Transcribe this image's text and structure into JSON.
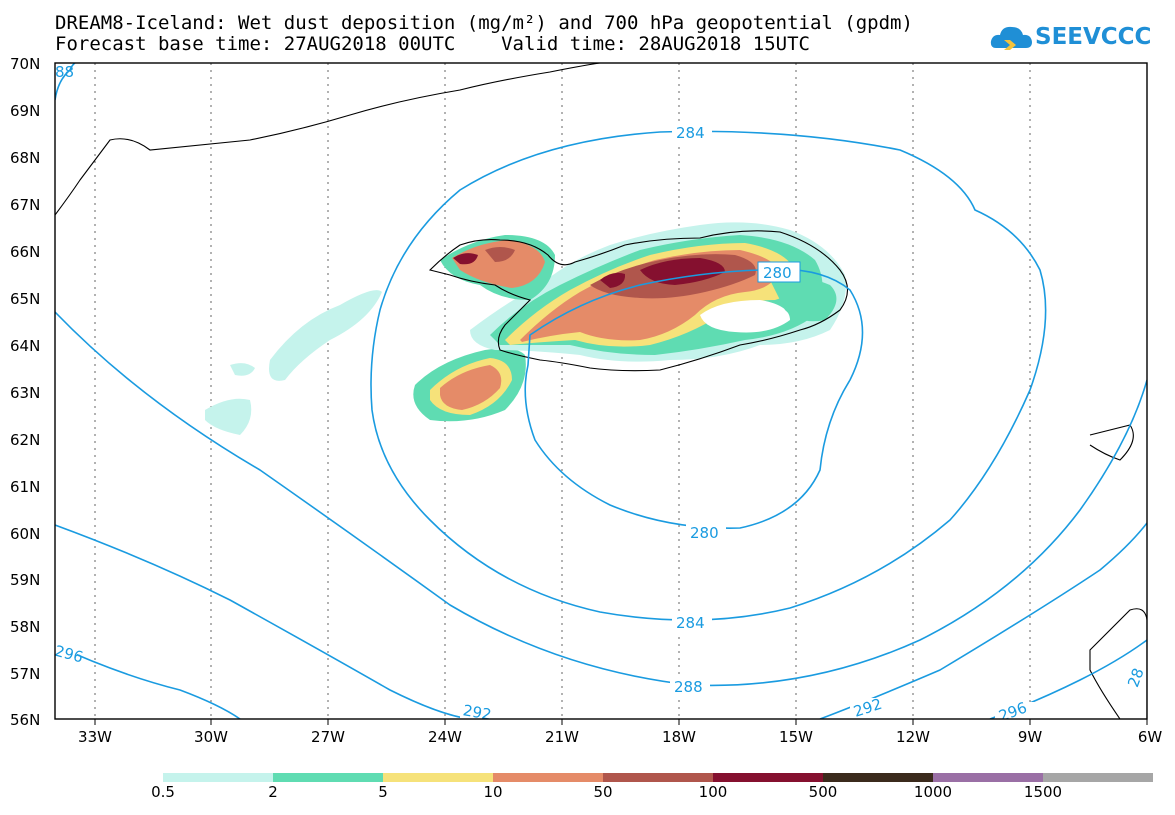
{
  "title": {
    "line1": "DREAM8-Iceland: Wet dust deposition (mg/m²) and 700 hPa geopotential (gpdm)",
    "line2": "Forecast base time: 27AUG2018 00UTC    Valid time: 28AUG2018 15UTC"
  },
  "logo": {
    "text": "SEEVCCC",
    "icon": "cloud-icon",
    "color": "#1f8fd6"
  },
  "map": {
    "lat_labels": [
      "70N",
      "69N",
      "68N",
      "67N",
      "66N",
      "65N",
      "64N",
      "63N",
      "62N",
      "61N",
      "60N",
      "59N",
      "58N",
      "57N",
      "56N"
    ],
    "lon_labels": [
      "33W",
      "30W",
      "27W",
      "24W",
      "21W",
      "18W",
      "15W",
      "12W",
      "9W",
      "6W"
    ],
    "contour_color": "#1a9be0",
    "contour_labels": [
      "284",
      "280",
      "280",
      "284",
      "288",
      "292",
      "292",
      "296",
      "296",
      "88",
      "28"
    ]
  },
  "legend": {
    "labels": [
      "0.5",
      "2",
      "5",
      "10",
      "50",
      "100",
      "500",
      "1000",
      "1500"
    ],
    "colors": [
      "#c5f3ec",
      "#5fdcb2",
      "#f6e27a",
      "#e58b68",
      "#b0564c",
      "#85102f",
      "#3b2a1c",
      "#9a6fa5",
      "#a6a6a6"
    ]
  }
}
